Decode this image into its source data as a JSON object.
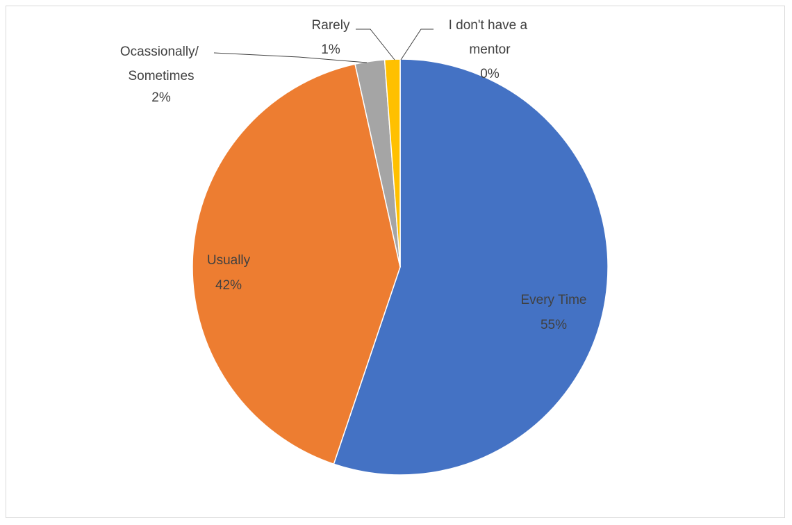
{
  "chart_data": {
    "type": "pie",
    "title": "",
    "start_angle": 0,
    "direction": "clockwise",
    "slices": [
      {
        "label": "Every Time",
        "percent_label": "55%",
        "value": 55.4,
        "color": "#4472C4"
      },
      {
        "label": "Usually",
        "percent_label": "42%",
        "value": 41.5,
        "color": "#ED7D31"
      },
      {
        "label": "Ocassionally/ Sometimes",
        "percent_label": "2%",
        "value": 2.3,
        "color": "#A5A5A5"
      },
      {
        "label": "Rarely",
        "percent_label": "1%",
        "value": 1.2,
        "color": "#FFC000"
      },
      {
        "label": "I don't have a mentor",
        "percent_label": "0%",
        "value": 0.0,
        "color": "#5B9BD5"
      }
    ],
    "legend": "none",
    "data_labels": "category-and-percent"
  }
}
